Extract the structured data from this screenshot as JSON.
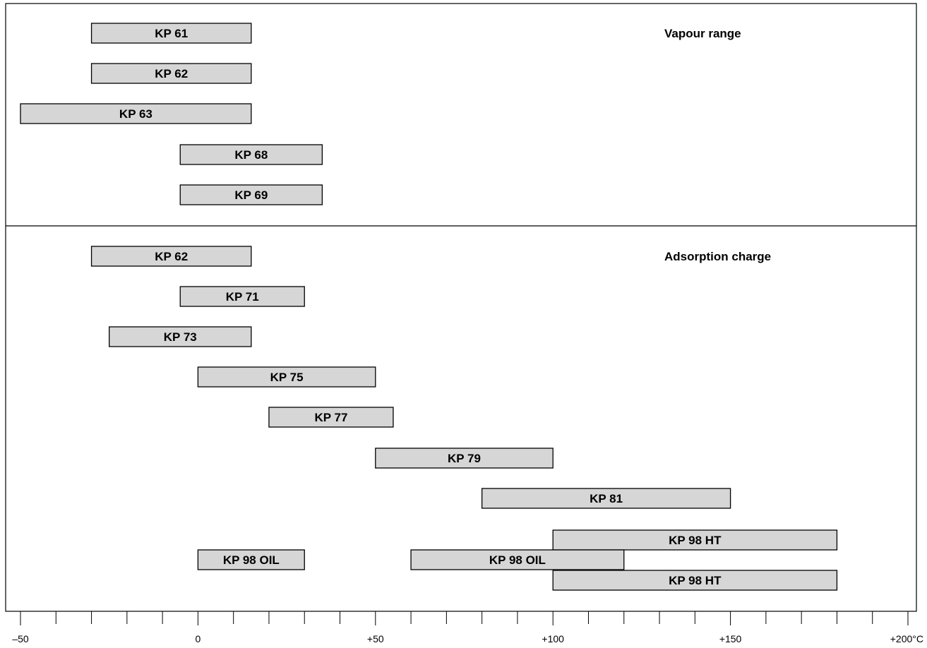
{
  "chart_data": {
    "type": "bar",
    "orientation": "horizontal-range",
    "x_unit": "°C",
    "xlim": [
      -50,
      200
    ],
    "x_ticks": [
      {
        "value": -50,
        "label": "–50"
      },
      {
        "value": 0,
        "label": "0"
      },
      {
        "value": 50,
        "label": "+50"
      },
      {
        "value": 100,
        "label": "+100"
      },
      {
        "value": 150,
        "label": "+150"
      },
      {
        "value": 200,
        "label": "+200°C"
      }
    ],
    "minor_tick_step": 10,
    "sections": [
      {
        "title": "Vapour range",
        "ranges": [
          {
            "label": "KP 61",
            "from": -30,
            "to": 15
          },
          {
            "label": "KP 62",
            "from": -30,
            "to": 15
          },
          {
            "label": "KP 63",
            "from": -50,
            "to": 15
          },
          {
            "label": "KP 68",
            "from": -5,
            "to": 35
          },
          {
            "label": "KP 69",
            "from": -5,
            "to": 35
          }
        ]
      },
      {
        "title": "Adsorption charge",
        "ranges": [
          {
            "label": "KP 62",
            "from": -30,
            "to": 15
          },
          {
            "label": "KP 71",
            "from": -5,
            "to": 30
          },
          {
            "label": "KP 73",
            "from": -25,
            "to": 15
          },
          {
            "label": "KP 75",
            "from": 0,
            "to": 50
          },
          {
            "label": "KP 77",
            "from": 20,
            "to": 55
          },
          {
            "label": "KP 79",
            "from": 50,
            "to": 100
          },
          {
            "label": "KP 81",
            "from": 80,
            "to": 150
          },
          {
            "label": "KP 98 HT",
            "from": 100,
            "to": 180
          },
          {
            "label": "KP 98 OIL",
            "from": 0,
            "to": 30
          },
          {
            "label": "KP 98 OIL",
            "from": 60,
            "to": 120
          },
          {
            "label": "KP 98 HT",
            "from": 100,
            "to": 180
          }
        ]
      }
    ]
  }
}
